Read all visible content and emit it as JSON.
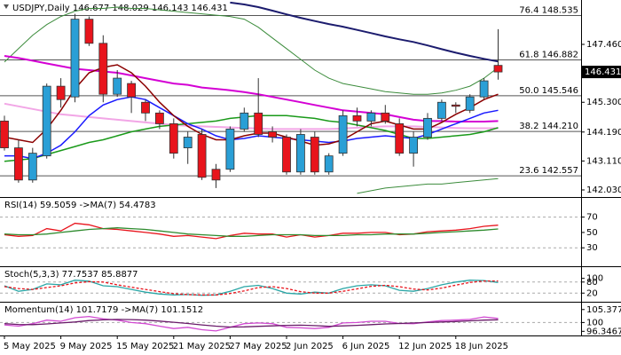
{
  "chart_data": [
    {
      "type": "candlestick",
      "title": "USDJPY,Daily  146.677 148.029 146.143 146.431",
      "categories": [
        "5 May 2025",
        null,
        null,
        null,
        "9 May 2025",
        null,
        null,
        null,
        "15 May 2025",
        null,
        null,
        null,
        "21 May 2025",
        null,
        null,
        null,
        "27 May 2025",
        null,
        null,
        null,
        "2 Jun 2025",
        null,
        null,
        null,
        "6 Jun 2025",
        null,
        null,
        null,
        "12 Jun 2025",
        null,
        null,
        null,
        "18 Jun 2025",
        null,
        null,
        null
      ],
      "open": [
        144.6,
        143.6,
        142.4,
        143.3,
        145.9,
        145.5,
        148.4,
        147.5,
        145.6,
        146.0,
        145.3,
        144.9,
        144.5,
        143.6,
        144.1,
        142.8,
        142.8,
        144.3,
        144.9,
        144.2,
        144.0,
        142.7,
        144.0,
        142.7,
        143.4,
        144.8,
        144.6,
        144.9,
        144.5,
        143.4,
        144.0,
        144.7,
        145.2,
        145.0,
        145.5,
        146.677
      ],
      "high": [
        144.8,
        143.9,
        143.6,
        146.0,
        146.2,
        148.6,
        148.5,
        147.8,
        146.5,
        146.1,
        145.4,
        145.0,
        144.7,
        144.2,
        144.3,
        143.0,
        144.4,
        145.1,
        146.2,
        144.4,
        144.1,
        144.3,
        144.2,
        143.4,
        145.0,
        145.1,
        145.0,
        145.2,
        144.7,
        144.2,
        144.9,
        145.4,
        145.3,
        145.6,
        146.2,
        148.029
      ],
      "low": [
        143.5,
        142.3,
        142.3,
        143.2,
        145.1,
        145.3,
        147.4,
        145.3,
        145.5,
        144.9,
        144.6,
        144.3,
        143.2,
        143.0,
        142.4,
        142.1,
        142.7,
        144.2,
        144.0,
        143.8,
        142.6,
        142.6,
        142.6,
        142.6,
        143.3,
        144.4,
        144.4,
        144.5,
        143.3,
        142.9,
        143.9,
        144.6,
        144.9,
        144.9,
        145.4,
        146.143
      ],
      "close": [
        143.6,
        142.4,
        143.4,
        145.9,
        145.4,
        148.4,
        147.5,
        145.6,
        146.2,
        145.5,
        144.9,
        144.5,
        143.4,
        144.0,
        142.5,
        142.4,
        144.3,
        144.9,
        144.1,
        144.0,
        142.7,
        144.1,
        142.7,
        143.3,
        144.8,
        144.6,
        144.9,
        144.6,
        143.4,
        144.0,
        144.7,
        145.3,
        145.15,
        145.5,
        146.1,
        146.431
      ],
      "up_color": "#2a9fd6",
      "down_color": "#e8141c",
      "lines": [
        {
          "color": "#3c8c3c",
          "width": 1,
          "values": [
            146.8,
            147.3,
            147.8,
            148.2,
            148.5,
            148.7,
            148.8,
            148.8,
            148.85,
            148.8,
            148.8,
            148.75,
            148.7,
            148.65,
            148.6,
            148.55,
            148.5,
            148.4,
            148.1,
            147.7,
            147.3,
            146.9,
            146.5,
            146.2,
            146.0,
            145.9,
            145.8,
            145.7,
            145.65,
            145.6,
            145.6,
            145.65,
            145.75,
            145.9,
            146.2,
            146.6
          ]
        },
        {
          "color": "#3c8c3c",
          "width": 1,
          "values": [
            null,
            null,
            null,
            null,
            null,
            null,
            null,
            null,
            null,
            null,
            null,
            null,
            null,
            null,
            null,
            null,
            null,
            null,
            null,
            null,
            null,
            null,
            null,
            null,
            null,
            141.9,
            142.0,
            142.1,
            142.15,
            142.2,
            142.25,
            142.25,
            142.3,
            142.35,
            142.4,
            142.45
          ]
        },
        {
          "color": "#f2a6e6",
          "width": 2,
          "values": [
            145.25,
            145.15,
            145.05,
            144.95,
            144.85,
            144.8,
            144.75,
            144.7,
            144.65,
            144.6,
            144.55,
            144.5,
            144.45,
            144.42,
            144.4,
            144.38,
            144.36,
            144.34,
            144.32,
            144.3,
            144.3,
            144.3,
            144.3,
            144.3,
            144.32,
            144.35,
            144.38,
            144.4,
            144.4,
            144.4,
            144.38,
            144.36,
            144.34,
            144.33,
            144.33,
            144.33
          ]
        },
        {
          "color": "#d400d4",
          "width": 2,
          "values": [
            147.03,
            146.95,
            146.85,
            146.75,
            146.65,
            146.55,
            146.5,
            146.45,
            146.4,
            146.3,
            146.2,
            146.1,
            146.0,
            145.95,
            145.85,
            145.8,
            145.75,
            145.68,
            145.6,
            145.5,
            145.4,
            145.3,
            145.2,
            145.1,
            145.0,
            144.95,
            144.9,
            144.85,
            144.75,
            144.65,
            144.6,
            144.6,
            144.58,
            144.58,
            144.58,
            144.6
          ]
        },
        {
          "color": "#1a9a1a",
          "width": 1.5,
          "values": [
            143.1,
            143.15,
            143.2,
            143.35,
            143.5,
            143.65,
            143.8,
            143.9,
            144.05,
            144.2,
            144.3,
            144.4,
            144.45,
            144.5,
            144.55,
            144.6,
            144.7,
            144.75,
            144.8,
            144.8,
            144.8,
            144.75,
            144.7,
            144.6,
            144.55,
            144.45,
            144.35,
            144.25,
            144.1,
            143.95,
            143.95,
            144.0,
            144.05,
            144.1,
            144.2,
            144.35
          ]
        },
        {
          "color": "#1a1aff",
          "width": 1.5,
          "values": [
            143.3,
            143.3,
            143.2,
            143.4,
            143.7,
            144.2,
            144.8,
            145.2,
            145.4,
            145.5,
            145.4,
            145.1,
            144.8,
            144.5,
            144.3,
            144.05,
            143.9,
            143.95,
            144.05,
            144.0,
            143.95,
            143.9,
            143.85,
            143.8,
            143.85,
            143.95,
            144.0,
            144.05,
            144.0,
            143.95,
            144.1,
            144.3,
            144.5,
            144.7,
            144.9,
            145.0
          ]
        },
        {
          "color": "#8b0000",
          "width": 1.5,
          "values": [
            144.0,
            143.9,
            143.8,
            144.3,
            145.0,
            145.8,
            146.4,
            146.6,
            146.7,
            146.4,
            145.9,
            145.3,
            144.8,
            144.4,
            144.1,
            143.9,
            143.9,
            144.05,
            144.15,
            144.15,
            144.0,
            143.85,
            143.7,
            143.75,
            143.9,
            144.2,
            144.5,
            144.6,
            144.45,
            144.3,
            144.3,
            144.55,
            144.85,
            145.1,
            145.4,
            145.6
          ]
        },
        {
          "color": "#1c1c6e",
          "width": 2,
          "values": [
            null,
            null,
            null,
            null,
            null,
            null,
            null,
            null,
            null,
            null,
            null,
            null,
            null,
            null,
            null,
            null,
            149.02,
            148.95,
            148.85,
            148.72,
            148.58,
            148.45,
            148.33,
            148.22,
            148.12,
            148.0,
            147.88,
            147.76,
            147.65,
            147.55,
            147.42,
            147.28,
            147.15,
            147.03,
            146.92,
            146.82
          ]
        }
      ],
      "levels": [
        {
          "value": 148.535,
          "label": "76.4 148.535"
        },
        {
          "value": 146.882,
          "label": "61.8 146.882"
        },
        {
          "value": 145.546,
          "label": "50.0 145.546"
        },
        {
          "value": 144.21,
          "label": "38.2 144.210"
        },
        {
          "value": 142.557,
          "label": "23.6 142.557"
        }
      ],
      "last": 146.431,
      "ylim": [
        141.765,
        149.116
      ],
      "yticks": [
        {
          "value": 147.46,
          "label": "147.460"
        },
        {
          "value": 145.3,
          "label": "145.300"
        },
        {
          "value": 144.19,
          "label": "144.190"
        },
        {
          "value": 143.11,
          "label": "143.110"
        },
        {
          "value": 142.03,
          "label": "142.030"
        }
      ]
    },
    {
      "type": "line",
      "title": "RSI(14) 59.5059 ->MA(7) 54.4783",
      "series": [
        {
          "color": "#e8141c",
          "dashed": false,
          "values": [
            47,
            45,
            46,
            55,
            52,
            62,
            60,
            55,
            54,
            52,
            50,
            48,
            45,
            46,
            44,
            42,
            46,
            49,
            48,
            48,
            44,
            47,
            44,
            46,
            49,
            49,
            50,
            50,
            47,
            48,
            51,
            52,
            53,
            55,
            58,
            59.5
          ]
        },
        {
          "color": "#2e8b2e",
          "dashed": false,
          "values": [
            48,
            47,
            47,
            48,
            50,
            52,
            54,
            55,
            56,
            55,
            54,
            52,
            50,
            48,
            47,
            46,
            45,
            45,
            46,
            47,
            47,
            47,
            46,
            46,
            46,
            47,
            47,
            48,
            48,
            48,
            49,
            50,
            51,
            52,
            53,
            54.5
          ]
        }
      ],
      "levels": [
        70,
        30
      ],
      "ylim": [
        6,
        95
      ],
      "yticks": [
        70,
        50,
        30
      ]
    },
    {
      "type": "line",
      "title": "Stoch(5,3,3) 77.7537 85.8877",
      "series": [
        {
          "color": "#2aa6a6",
          "dashed": false,
          "values": [
            60,
            30,
            40,
            70,
            65,
            90,
            85,
            60,
            55,
            40,
            25,
            15,
            10,
            12,
            8,
            10,
            30,
            55,
            62,
            45,
            20,
            15,
            25,
            20,
            45,
            60,
            65,
            60,
            35,
            30,
            45,
            65,
            80,
            90,
            88,
            77.8
          ]
        },
        {
          "color": "#e8141c",
          "dashed": true,
          "values": [
            55,
            45,
            40,
            50,
            60,
            75,
            82,
            80,
            65,
            52,
            40,
            28,
            17,
            12,
            10,
            10,
            18,
            32,
            50,
            55,
            45,
            28,
            20,
            20,
            30,
            43,
            57,
            62,
            55,
            42,
            37,
            47,
            63,
            78,
            86,
            85.9
          ]
        }
      ],
      "levels": [
        80,
        20
      ],
      "ylim": [
        -27,
        161
      ],
      "yticks": [
        100,
        80,
        20
      ]
    },
    {
      "type": "line",
      "title": "Momentum(14) 101.7179 ->MA(7) 101.1512",
      "series": [
        {
          "color": "#d24ad2",
          "dashed": false,
          "values": [
            99,
            98.5,
            99.5,
            101,
            100.5,
            102,
            102.5,
            101.5,
            101,
            100,
            99.5,
            98.5,
            97.5,
            98,
            97,
            96.5,
            98,
            99.5,
            99.8,
            99.5,
            98,
            97.8,
            97.5,
            98,
            99.8,
            100,
            100.5,
            100.5,
            99.6,
            99.5,
            100.2,
            100.8,
            101,
            101.3,
            102.3,
            101.7
          ]
        },
        {
          "color": "#6a1b6a",
          "dashed": false,
          "values": [
            99.5,
            99.2,
            99.1,
            99.4,
            99.8,
            100.2,
            100.8,
            101.1,
            101.3,
            101.2,
            101,
            100.6,
            100.1,
            99.6,
            99,
            98.5,
            98.1,
            98.2,
            98.4,
            98.6,
            98.8,
            98.9,
            98.7,
            98.4,
            98.6,
            98.8,
            99.1,
            99.4,
            99.6,
            99.8,
            100,
            100.2,
            100.4,
            100.7,
            101,
            101.15
          ]
        }
      ],
      "levels": [
        100
      ],
      "ylim": [
        94.62,
        108.24
      ],
      "yticks": [
        105.377,
        100,
        96.3467
      ]
    }
  ]
}
